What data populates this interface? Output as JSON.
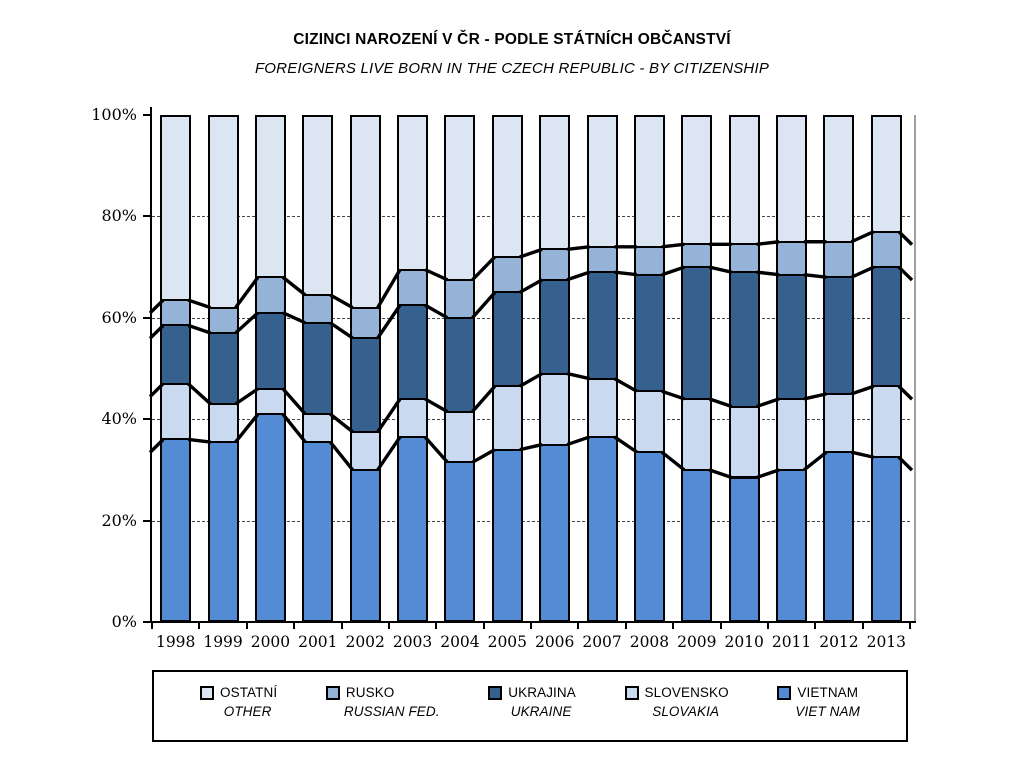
{
  "chart_data": {
    "type": "bar",
    "variant": "100-percent-stacked-column-with-series-lines",
    "title": "CIZINCI NAROZENÍ V ČR - PODLE STÁTNÍCH OBČANSTVÍ",
    "subtitle": "FOREIGNERS LIVE BORN IN THE CZECH REPUBLIC - BY CITIZENSHIP",
    "unit": "percent of total",
    "categories": [
      "1998",
      "1999",
      "2000",
      "2001",
      "2002",
      "2003",
      "2004",
      "2005",
      "2006",
      "2007",
      "2008",
      "2009",
      "2010",
      "2011",
      "2012",
      "2013"
    ],
    "stack_order": "bottom-to-top",
    "series": [
      {
        "name_cz": "VIETNAM",
        "name_en": "VIET NAM",
        "color": "#548BD5",
        "values": [
          36,
          35.5,
          41,
          35.5,
          30,
          36.5,
          31.5,
          34,
          35,
          36.5,
          33.5,
          30,
          28.5,
          30,
          33.5,
          32.5
        ]
      },
      {
        "name_cz": "SLOVENSKO",
        "name_en": "SLOVAKIA",
        "color": "#C9D9F0",
        "values": [
          11,
          7.5,
          5,
          5.5,
          7.5,
          7.5,
          10,
          12.5,
          14,
          11.5,
          12,
          14,
          14,
          14,
          11.5,
          14
        ]
      },
      {
        "name_cz": "UKRAJINA",
        "name_en": "UKRAINE",
        "color": "#36618F",
        "values": [
          11.5,
          14,
          15,
          18,
          18.5,
          18.5,
          18.5,
          18.5,
          18.5,
          21,
          23,
          26,
          26.5,
          24.5,
          23,
          23.5
        ]
      },
      {
        "name_cz": "RUSKO",
        "name_en": "RUSSIAN FED.",
        "color": "#95B3D7",
        "values": [
          5,
          5,
          7,
          5.5,
          6,
          7,
          7.5,
          7,
          6,
          5,
          5.5,
          4.5,
          5.5,
          6.5,
          7,
          7
        ]
      },
      {
        "name_cz": "OSTATNÍ",
        "name_en": "OTHER",
        "color": "#DCE6F2",
        "values": [
          36.5,
          38,
          32,
          35.5,
          38,
          30.5,
          32.5,
          28,
          26.5,
          26,
          26,
          25.5,
          25.5,
          25,
          25,
          23
        ]
      }
    ],
    "legend": {
      "position": "bottom",
      "order_series_indexes": [
        4,
        3,
        2,
        1,
        0
      ]
    },
    "ylim": [
      0,
      100
    ],
    "yticks": [
      {
        "pct": 0,
        "label": "0%"
      },
      {
        "pct": 20,
        "label": "20%"
      },
      {
        "pct": 40,
        "label": "40%"
      },
      {
        "pct": 60,
        "label": "60%"
      },
      {
        "pct": 80,
        "label": "80%"
      },
      {
        "pct": 100,
        "label": "100%"
      }
    ],
    "grid": {
      "horizontal_dashed_at": [
        20,
        40,
        60,
        80
      ]
    },
    "series_lines": true,
    "bar_border_color": "#000000",
    "series_line_color": "#000000"
  }
}
